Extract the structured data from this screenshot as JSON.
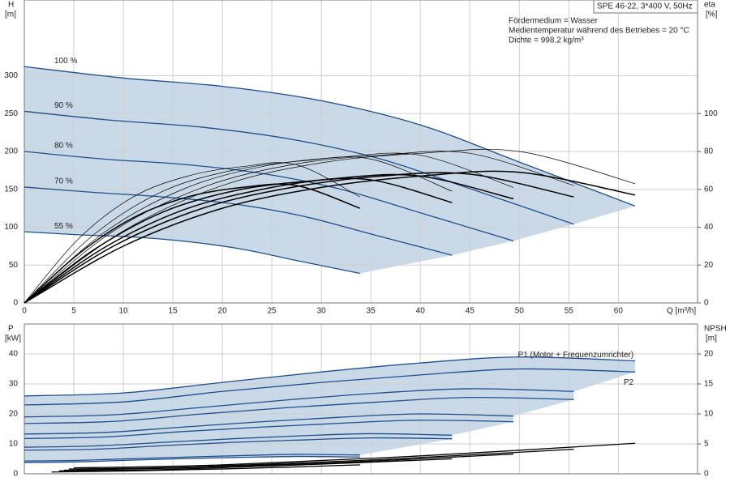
{
  "chart_data": [
    {
      "type": "line",
      "title": "SPE 46-22, 3*400 V, 50Hz",
      "annotations": [
        "Fördermedium = Wasser",
        "Medientemperatur während des Betriebes = 20 °C",
        "Dichte = 998.2 kg/m³"
      ],
      "x_label": "Q [m³/h]",
      "y_label": "H",
      "y_unit": "[m]",
      "y2_label": "eta",
      "y2_unit": "[%]",
      "xlim": [
        0,
        68
      ],
      "xticks": [
        0,
        5,
        10,
        15,
        20,
        25,
        30,
        35,
        40,
        45,
        50,
        55,
        60
      ],
      "ylim": [
        0,
        400
      ],
      "yticks": [
        0,
        50,
        100,
        150,
        200,
        250,
        300
      ],
      "y2lim": [
        0,
        160
      ],
      "y2ticks": [
        0,
        20,
        40,
        60,
        80,
        100
      ],
      "grid": true,
      "shade_color": "#c9d9e7",
      "series": [
        {
          "name": "100 %",
          "color": "#1f4e8c",
          "width": 1.3,
          "x": [
            0,
            10,
            20,
            30,
            40,
            50,
            61.7
          ],
          "values": [
            312,
            297,
            286,
            267,
            235,
            186,
            128
          ]
        },
        {
          "name": "90 %",
          "color": "#1f4e8c",
          "width": 1.3,
          "x": [
            0,
            9,
            18,
            27,
            36,
            45,
            55.5
          ],
          "values": [
            253,
            241,
            232,
            216,
            190,
            151,
            104
          ]
        },
        {
          "name": "80 %",
          "color": "#1f4e8c",
          "width": 1.3,
          "x": [
            0,
            8,
            16,
            24,
            32,
            40,
            49.4
          ],
          "values": [
            200,
            190,
            183,
            171,
            150,
            119,
            82
          ]
        },
        {
          "name": "70 %",
          "color": "#1f4e8c",
          "width": 1.3,
          "x": [
            0,
            7,
            14,
            21,
            28,
            35,
            43.2
          ],
          "values": [
            153,
            146,
            140,
            131,
            115,
            91,
            63
          ]
        },
        {
          "name": "55 %",
          "color": "#1f4e8c",
          "width": 1.3,
          "x": [
            0,
            5.5,
            11,
            16.5,
            22,
            27.5,
            33.9
          ],
          "values": [
            94,
            90,
            87,
            81,
            71,
            56,
            39
          ]
        },
        {
          "axis": "y2",
          "color": "#000000",
          "width": 1.5,
          "x": [
            0,
            10,
            20,
            30,
            40,
            50,
            61.7
          ],
          "values": [
            0,
            30,
            50,
            61,
            67,
            69,
            57
          ]
        },
        {
          "axis": "y2",
          "color": "#000000",
          "width": 1.5,
          "x": [
            0,
            9,
            18,
            27,
            36,
            45,
            55.5
          ],
          "values": [
            0,
            30,
            50,
            61,
            67,
            68,
            56
          ]
        },
        {
          "axis": "y2",
          "color": "#000000",
          "width": 1.5,
          "x": [
            0,
            8,
            16,
            24,
            32,
            40,
            49.4
          ],
          "values": [
            0,
            29,
            49,
            60,
            66,
            67,
            55
          ]
        },
        {
          "axis": "y2",
          "color": "#000000",
          "width": 1.5,
          "x": [
            0,
            7,
            14,
            21,
            28,
            35,
            43.2
          ],
          "values": [
            0,
            28,
            48,
            59,
            64,
            65,
            53
          ]
        },
        {
          "axis": "y2",
          "color": "#000000",
          "width": 1.5,
          "x": [
            0,
            5.5,
            11,
            16.5,
            22,
            27.5,
            33.9
          ],
          "values": [
            0,
            26,
            45,
            56,
            61,
            62,
            50
          ]
        },
        {
          "axis": "y2",
          "color": "#000000",
          "width": 0.7,
          "x": [
            0,
            10,
            20,
            30,
            40,
            50,
            61.7
          ],
          "values": [
            0,
            38,
            62,
            74,
            79,
            80,
            63
          ]
        },
        {
          "axis": "y2",
          "color": "#000000",
          "width": 0.7,
          "x": [
            0,
            9,
            18,
            27,
            36,
            45,
            55.5
          ],
          "values": [
            0,
            38,
            61,
            73,
            78,
            79,
            62
          ]
        },
        {
          "axis": "y2",
          "color": "#000000",
          "width": 0.7,
          "x": [
            0,
            8,
            16,
            24,
            32,
            40,
            49.4
          ],
          "values": [
            0,
            37,
            60,
            72,
            77,
            78,
            61
          ]
        },
        {
          "axis": "y2",
          "color": "#000000",
          "width": 0.7,
          "x": [
            0,
            7,
            14,
            21,
            28,
            35,
            43.2
          ],
          "values": [
            0,
            36,
            59,
            70,
            75,
            76,
            59
          ]
        },
        {
          "axis": "y2",
          "color": "#000000",
          "width": 0.7,
          "x": [
            0,
            5.5,
            11,
            16.5,
            22,
            27.5,
            33.9
          ],
          "values": [
            0,
            34,
            56,
            67,
            72,
            73,
            56
          ]
        }
      ]
    },
    {
      "type": "line",
      "y_label": "P",
      "y_unit": "[kW]",
      "y2_label": "NPSH",
      "y2_unit": "[m]",
      "xlim": [
        0,
        68
      ],
      "xticks": [
        0,
        5,
        10,
        15,
        20,
        25,
        30,
        35,
        40,
        45,
        50,
        55,
        60
      ],
      "ylim": [
        0,
        50
      ],
      "yticks": [
        0,
        10,
        20,
        30,
        40
      ],
      "y2lim": [
        0,
        25
      ],
      "y2ticks": [
        0,
        5,
        10,
        15,
        20
      ],
      "grid": true,
      "shade_color": "#c9d9e7",
      "series": [
        {
          "name": "P1 (Motor + Frequenzumrichter)",
          "color": "#1f4e8c",
          "width": 1.3,
          "x": [
            0,
            10,
            20,
            30,
            40,
            50,
            61.7
          ],
          "values": [
            26,
            27,
            30.5,
            34,
            37,
            39,
            37.7
          ]
        },
        {
          "name": "P2",
          "color": "#1f4e8c",
          "width": 1.3,
          "x": [
            0,
            10,
            20,
            30,
            40,
            50,
            61.7
          ],
          "values": [
            23,
            24,
            27.5,
            30.5,
            33,
            35,
            34
          ]
        },
        {
          "color": "#1f4e8c",
          "width": 1.3,
          "x": [
            0,
            9,
            18,
            27,
            36,
            45,
            55.5
          ],
          "values": [
            19,
            19.7,
            22.2,
            24.8,
            27,
            28.4,
            27.5
          ]
        },
        {
          "color": "#1f4e8c",
          "width": 1.3,
          "x": [
            0,
            9,
            18,
            27,
            36,
            45,
            55.5
          ],
          "values": [
            16.8,
            17.5,
            20,
            22.2,
            24,
            25.5,
            24.8
          ]
        },
        {
          "color": "#1f4e8c",
          "width": 1.3,
          "x": [
            0,
            8,
            16,
            24,
            32,
            40,
            49.4
          ],
          "values": [
            13.3,
            13.8,
            15.6,
            17.4,
            18.9,
            20,
            19.3
          ]
        },
        {
          "color": "#1f4e8c",
          "width": 1.3,
          "x": [
            0,
            8,
            16,
            24,
            32,
            40,
            49.4
          ],
          "values": [
            11.8,
            12.3,
            14.1,
            15.6,
            16.9,
            17.9,
            17.4
          ]
        },
        {
          "color": "#1f4e8c",
          "width": 1.3,
          "x": [
            0,
            7,
            14,
            21,
            28,
            35,
            43.2
          ],
          "values": [
            8.9,
            9.3,
            10.5,
            11.7,
            12.7,
            13.4,
            12.9
          ]
        },
        {
          "color": "#1f4e8c",
          "width": 1.3,
          "x": [
            0,
            7,
            14,
            21,
            28,
            35,
            43.2
          ],
          "values": [
            7.9,
            8.2,
            9.4,
            10.5,
            11.3,
            12,
            11.7
          ]
        },
        {
          "color": "#1f4e8c",
          "width": 1.3,
          "x": [
            0,
            5.5,
            11,
            16.5,
            22,
            27.5,
            33.9
          ],
          "values": [
            4.3,
            4.5,
            5.1,
            5.6,
            6.1,
            6.5,
            6.3
          ]
        },
        {
          "color": "#1f4e8c",
          "width": 1.3,
          "x": [
            0,
            5.5,
            11,
            16.5,
            22,
            27.5,
            33.9
          ],
          "values": [
            3.8,
            4,
            4.6,
            5.1,
            5.5,
            5.8,
            5.6
          ]
        },
        {
          "axis": "y2",
          "color": "#000000",
          "width": 1.3,
          "x": [
            5,
            20,
            40,
            61.7
          ],
          "values": [
            1,
            1.5,
            3,
            5.1
          ]
        },
        {
          "axis": "y2",
          "color": "#000000",
          "width": 1.3,
          "x": [
            4.5,
            18,
            36,
            55.5
          ],
          "values": [
            0.8,
            1.2,
            2.4,
            4.1
          ]
        },
        {
          "axis": "y2",
          "color": "#000000",
          "width": 1.3,
          "x": [
            4,
            16,
            32,
            49.4
          ],
          "values": [
            0.6,
            1,
            1.9,
            3.3
          ]
        },
        {
          "axis": "y2",
          "color": "#000000",
          "width": 1.3,
          "x": [
            3.5,
            14,
            28,
            43.2
          ],
          "values": [
            0.5,
            0.7,
            1.5,
            2.5
          ]
        },
        {
          "axis": "y2",
          "color": "#000000",
          "width": 1.3,
          "x": [
            2.75,
            11,
            22,
            33.9
          ],
          "values": [
            0.3,
            0.5,
            0.9,
            1.5
          ]
        }
      ]
    }
  ]
}
